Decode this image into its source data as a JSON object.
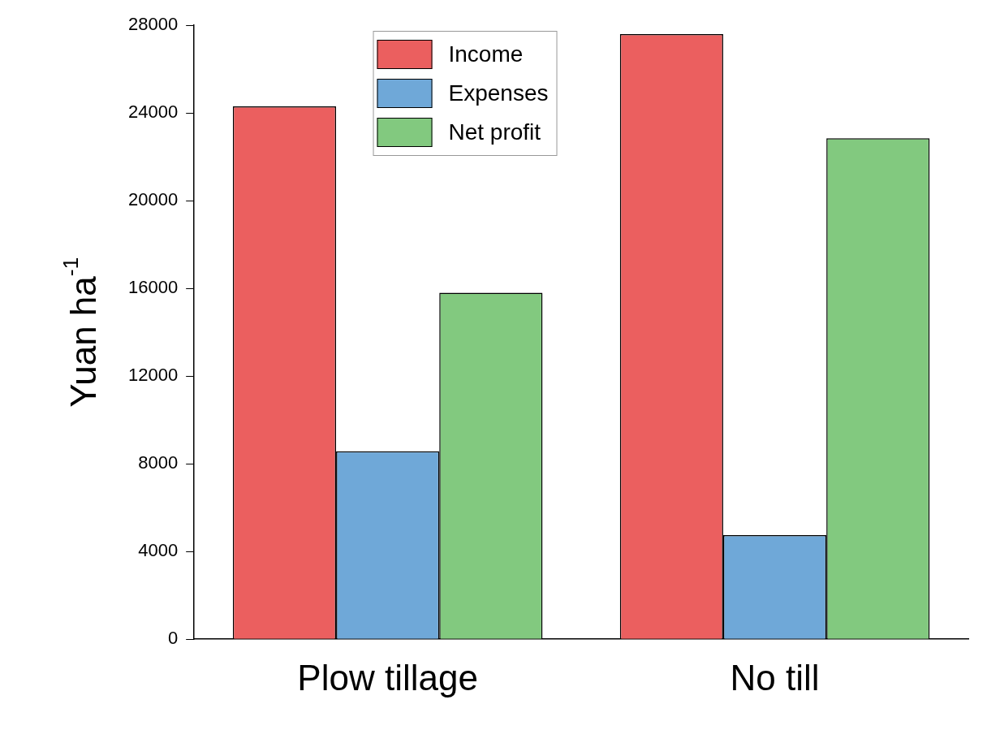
{
  "chart_data": {
    "type": "bar",
    "ylabel": "Yuan ha$^{-1}$",
    "categories": [
      "Plow tillage",
      "No till"
    ],
    "series": [
      {
        "name": "Income",
        "color": "#eb5f5f",
        "values": [
          24300,
          27600
        ]
      },
      {
        "name": "Expenses",
        "color": "#6fa8d8",
        "values": [
          8570,
          4750
        ]
      },
      {
        "name": "Net profit",
        "color": "#82c97f",
        "values": [
          15800,
          22850
        ]
      }
    ],
    "ylim": [
      0,
      28000
    ],
    "yticks": [
      0,
      4000,
      8000,
      12000,
      16000,
      20000,
      24000,
      28000
    ],
    "grid": false,
    "legend": "top"
  }
}
